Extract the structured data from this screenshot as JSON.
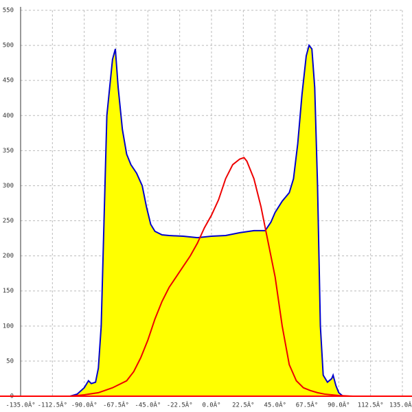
{
  "chart_data": {
    "type": "area",
    "xlim": [
      -135,
      135
    ],
    "ylim": [
      0,
      550
    ],
    "xticks": [
      {
        "value": -135,
        "label": "-135.0Â°"
      },
      {
        "value": -112.5,
        "label": "-112.5Â°"
      },
      {
        "value": -90,
        "label": "-90.0Â°"
      },
      {
        "value": -67.5,
        "label": "-67.5Â°"
      },
      {
        "value": -45,
        "label": "-45.0Â°"
      },
      {
        "value": -22.5,
        "label": "-22.5Â°"
      },
      {
        "value": 0,
        "label": "0.0Â°"
      },
      {
        "value": 22.5,
        "label": "22.5Â°"
      },
      {
        "value": 45,
        "label": "45.0Â°"
      },
      {
        "value": 67.5,
        "label": "67.5Â°"
      },
      {
        "value": 90,
        "label": "90.0Â°"
      },
      {
        "value": 112.5,
        "label": "112.5Â°"
      },
      {
        "value": 135,
        "label": "135.0Â°"
      }
    ],
    "yticks": [
      0,
      50,
      100,
      150,
      200,
      250,
      300,
      350,
      400,
      450,
      500,
      550
    ],
    "grid": true,
    "axis_color": "#ff0000",
    "series": [
      {
        "type": "area",
        "color": "#0000cc",
        "fill": "#ffff00",
        "x": [
          -100,
          -95,
          -90,
          -87,
          -85,
          -82,
          -80,
          -78,
          -76,
          -74,
          -72,
          -70,
          -68,
          -66,
          -63,
          -60,
          -57,
          -53,
          -49,
          -46,
          -43,
          -40,
          -35,
          -30,
          -20,
          -10,
          0,
          10,
          20,
          30,
          38,
          42,
          45,
          50,
          55,
          58,
          61,
          64,
          67,
          69,
          71,
          73,
          75,
          77,
          79,
          82,
          85,
          86,
          88,
          90,
          93
        ],
        "values": [
          0,
          3,
          12,
          22,
          18,
          20,
          40,
          100,
          250,
          400,
          440,
          480,
          495,
          440,
          380,
          345,
          330,
          318,
          300,
          270,
          245,
          235,
          230,
          229,
          228,
          226,
          228,
          229,
          233,
          236,
          236,
          248,
          262,
          278,
          290,
          310,
          360,
          430,
          485,
          500,
          495,
          440,
          300,
          100,
          30,
          20,
          25,
          30,
          15,
          5,
          0
        ]
      },
      {
        "type": "line",
        "color": "#ee0000",
        "x": [
          -100,
          -90,
          -80,
          -70,
          -60,
          -55,
          -50,
          -45,
          -40,
          -35,
          -30,
          -25,
          -20,
          -15,
          -10,
          -5,
          0,
          5,
          10,
          15,
          20,
          23,
          25,
          30,
          35,
          40,
          45,
          50,
          55,
          60,
          65,
          70,
          75,
          80,
          90,
          100
        ],
        "values": [
          0,
          2,
          5,
          12,
          22,
          35,
          55,
          80,
          110,
          135,
          155,
          170,
          185,
          200,
          218,
          240,
          258,
          280,
          310,
          330,
          338,
          340,
          335,
          310,
          270,
          220,
          170,
          100,
          45,
          22,
          12,
          8,
          5,
          3,
          1,
          0
        ]
      }
    ]
  }
}
